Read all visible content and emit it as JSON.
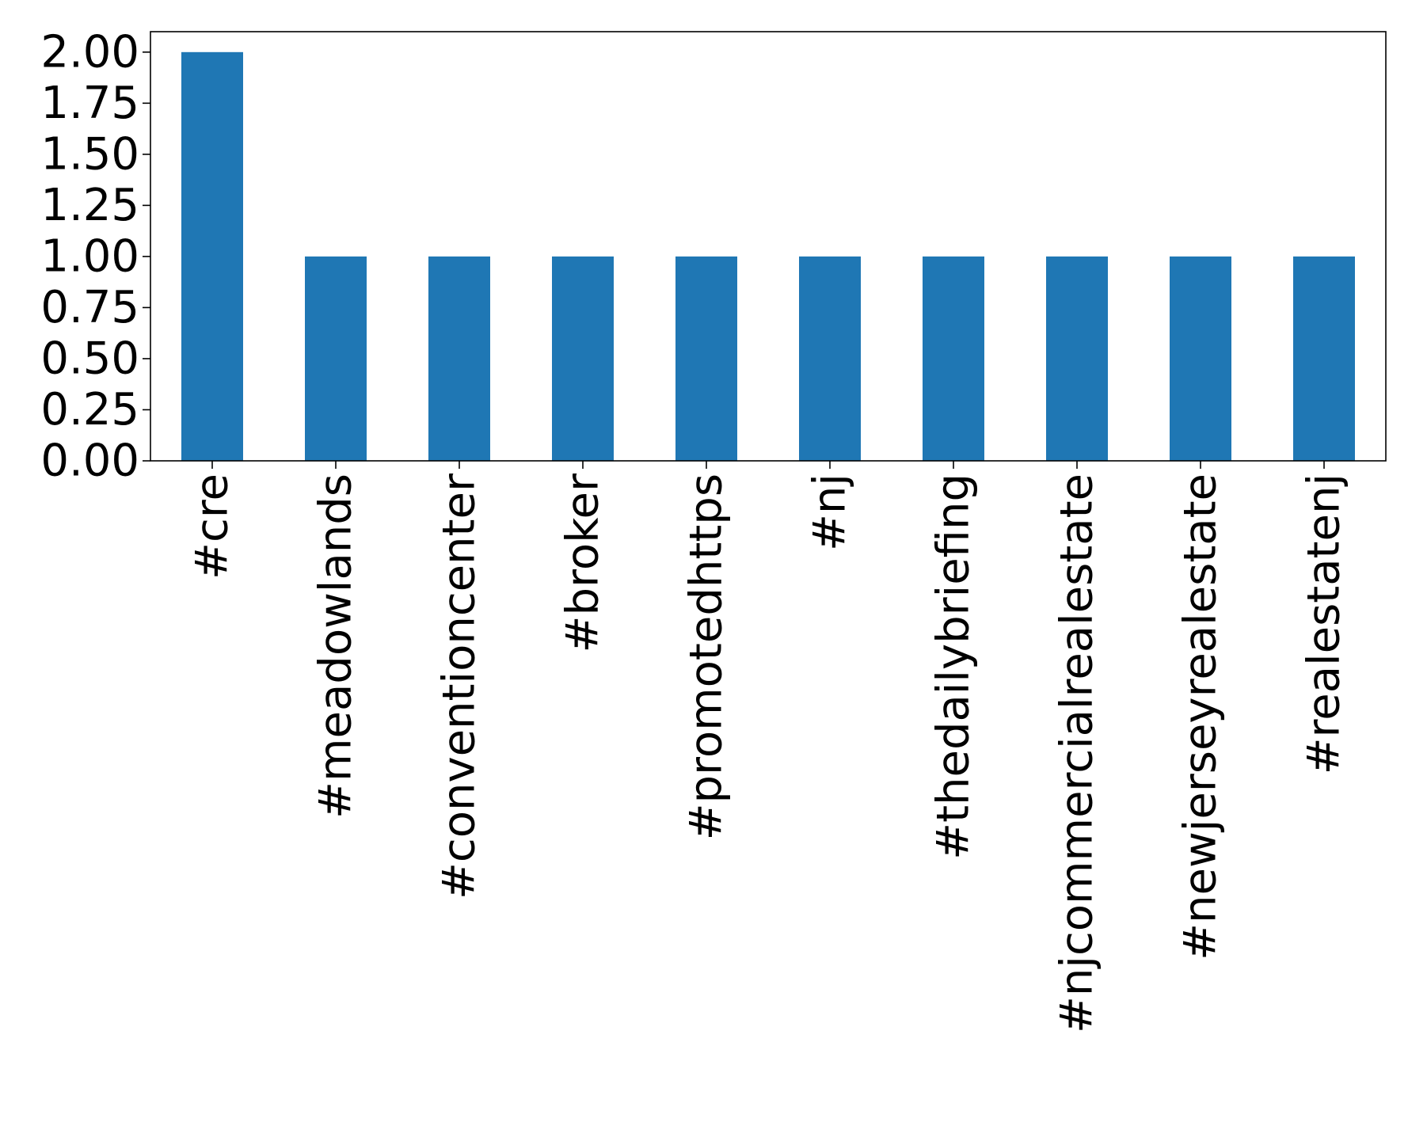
{
  "chart_data": {
    "type": "bar",
    "title": "",
    "xlabel": "",
    "ylabel": "",
    "categories": [
      "#cre",
      "#meadowlands",
      "#conventioncenter",
      "#broker",
      "#promotedhttps",
      "#nj",
      "#thedailybriefing",
      "#njcommercialrealestate",
      "#newjerseyrealestate",
      "#realestatenj"
    ],
    "values": [
      2,
      1,
      1,
      1,
      1,
      1,
      1,
      1,
      1,
      1
    ],
    "ylim": [
      0,
      2.1
    ],
    "yticks": [
      "0.00",
      "0.25",
      "0.50",
      "0.75",
      "1.00",
      "1.25",
      "1.50",
      "1.75",
      "2.00"
    ],
    "grid": false,
    "legend": "none",
    "bar_color": "#1f77b4"
  }
}
